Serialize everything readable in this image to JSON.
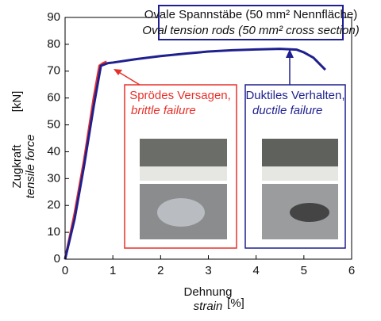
{
  "chart_data": {
    "type": "line",
    "title": "Ovale Spannstäbe (50 mm² Nennfläche)",
    "subtitle": "Oval tension rods (50 mm² cross section)",
    "xlabel": "Dehnung",
    "xlabel_en": "strain",
    "xunit": "[%]",
    "ylabel": "Zugkraft",
    "ylabel_en": "tensile force",
    "yunit": "[kN]",
    "xlim": [
      0,
      6
    ],
    "xticks": [
      0,
      1,
      2,
      3,
      4,
      5,
      6
    ],
    "ylim": [
      0,
      90
    ],
    "yticks": [
      0,
      10,
      20,
      30,
      40,
      50,
      60,
      70,
      80,
      90
    ],
    "series": [
      {
        "name": "Sprödes Versagen, brittle failure",
        "color": "#e8302a",
        "x": [
          0,
          0.2,
          0.4,
          0.6,
          0.72,
          0.8,
          0.87
        ],
        "values": [
          0,
          17,
          37,
          60,
          72,
          73,
          73.5
        ]
      },
      {
        "name": "Duktiles Verhalten, ductile failure",
        "color": "#1f1f8f",
        "x": [
          0,
          0.2,
          0.4,
          0.6,
          0.75,
          0.9,
          1.0,
          1.5,
          2.0,
          2.5,
          3.0,
          3.5,
          4.0,
          4.5,
          4.85,
          5.0,
          5.2,
          5.45
        ],
        "values": [
          0,
          15,
          35,
          57,
          72,
          73,
          73.2,
          74.5,
          75.6,
          76.5,
          77.3,
          77.8,
          78.1,
          78.3,
          78,
          77,
          75,
          70.5
        ]
      }
    ],
    "annotations": [
      {
        "text": "Sprödes Versagen,",
        "text_en": "brittle failure"
      },
      {
        "text": "Duktiles Verhalten,",
        "text_en": "ductile failure"
      }
    ]
  }
}
